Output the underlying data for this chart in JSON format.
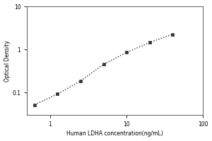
{
  "x": [
    0.63,
    1.25,
    2.5,
    5.0,
    10.0,
    20.0,
    40.0
  ],
  "y": [
    0.052,
    0.093,
    0.185,
    0.45,
    0.85,
    1.45,
    2.25
  ],
  "xlabel": "Human LDHA concentration(ng/mL)",
  "ylabel": "Optical Density",
  "xlim": [
    0.5,
    100
  ],
  "ylim": [
    0.03,
    10
  ],
  "xticks": [
    1,
    10,
    100
  ],
  "yticks": [
    0.1,
    1,
    10
  ],
  "line_color": "#333333",
  "marker_color": "#333333",
  "marker": "s",
  "marker_size": 3,
  "line_style": ":",
  "line_width": 1.0,
  "bg_color": "#ffffff",
  "label_fontsize": 5.5,
  "tick_fontsize": 5.5
}
